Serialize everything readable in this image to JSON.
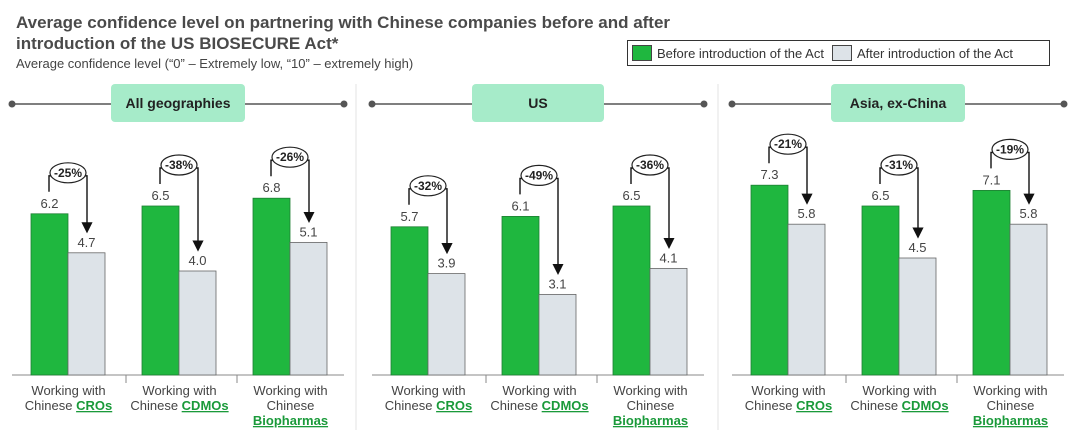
{
  "header": {
    "title": "Average confidence level on partnering with Chinese companies before and after introduction of the US BIOSECURE Act*",
    "subtitle": "Average confidence level (“0” – Extremely low, “10” – extremely high)"
  },
  "legend": {
    "before_label": "Before introduction of the Act",
    "after_label": "After introduction of the Act"
  },
  "colors": {
    "before": "#1fb73f",
    "after": "#dde3e8",
    "panel_label_bg": "#a6ebc9",
    "category_highlight": "#1a9a3a"
  },
  "chart_data": {
    "type": "bar",
    "ylim": [
      0,
      10
    ],
    "series_names": [
      "Before introduction of the Act",
      "After introduction of the Act"
    ],
    "category_labels": [
      {
        "line1": "Working with",
        "prefix": "Chinese ",
        "highlight": "CROs"
      },
      {
        "line1": "Working with",
        "prefix": "Chinese ",
        "highlight": "CDMOs"
      },
      {
        "line1": "Working with",
        "line2": "Chinese",
        "highlight": "Biopharmas"
      }
    ],
    "panels": [
      {
        "label": "All geographies",
        "before": [
          6.2,
          6.5,
          6.8
        ],
        "after": [
          4.7,
          4.0,
          5.1
        ],
        "change": [
          "-25%",
          "-38%",
          "-26%"
        ]
      },
      {
        "label": "US",
        "before": [
          5.7,
          6.1,
          6.5
        ],
        "after": [
          3.9,
          3.1,
          4.1
        ],
        "change": [
          "-32%",
          "-49%",
          "-36%"
        ]
      },
      {
        "label": "Asia, ex-China",
        "before": [
          7.3,
          6.5,
          7.1
        ],
        "after": [
          5.8,
          4.5,
          5.8
        ],
        "change": [
          "-21%",
          "-31%",
          "-19%"
        ]
      }
    ]
  }
}
